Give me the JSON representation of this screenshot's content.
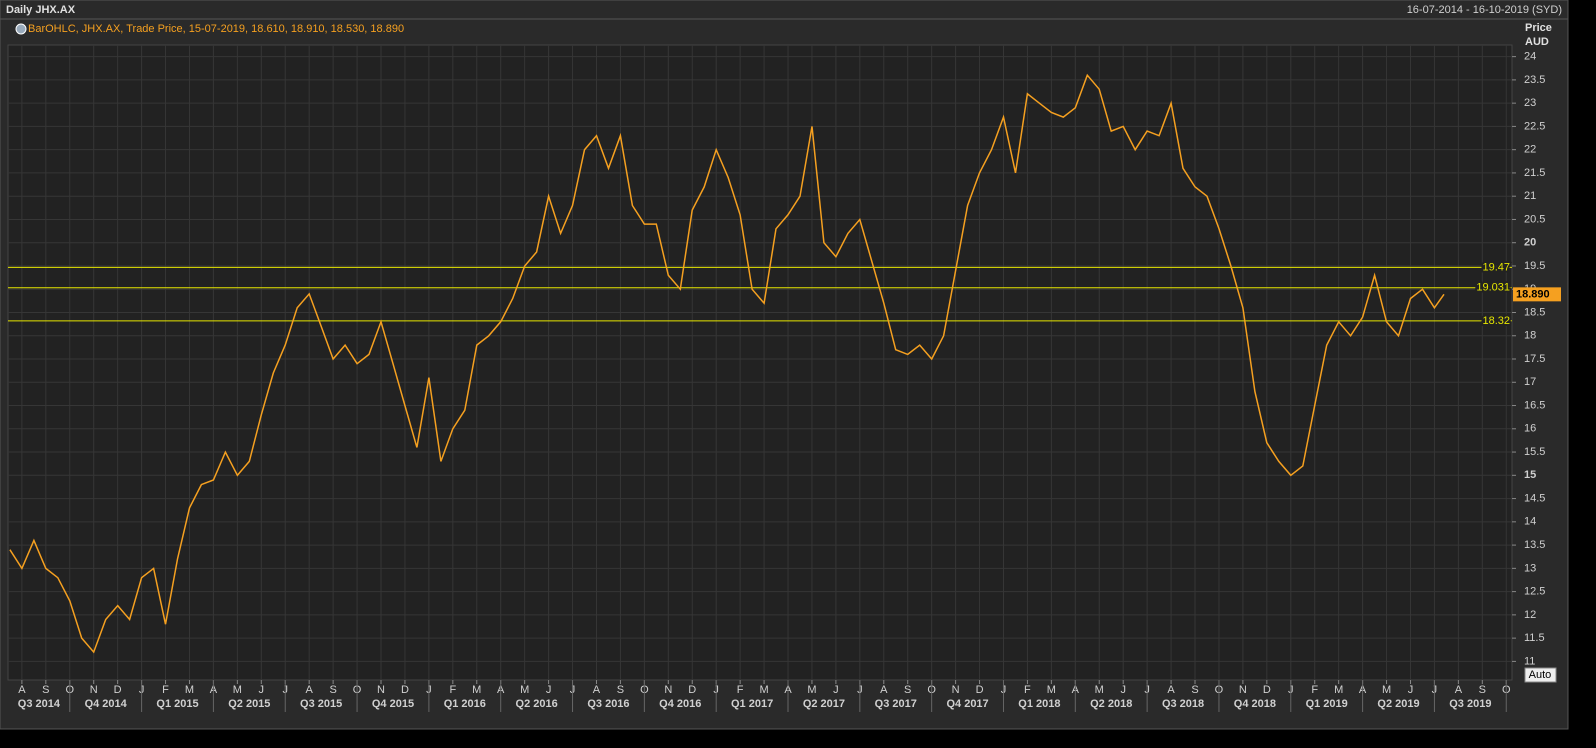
{
  "chart_data": {
    "type": "line",
    "title": "Daily JHX.AX",
    "date_range": "16-07-2014 - 16-10-2019 (SYD)",
    "legend_text": "BarOHLC, JHX.AX, Trade Price, 15-07-2019, 18.610, 18.910, 18.530, 18.890",
    "y_axis_title": "Price",
    "y_axis_unit": "AUD",
    "scale_button": "Auto",
    "x": [
      -0.5,
      0,
      0.5,
      1,
      1.5,
      2,
      2.5,
      3,
      3.5,
      4,
      4.5,
      5,
      5.5,
      6,
      6.5,
      7,
      7.5,
      8,
      8.5,
      9,
      9.5,
      10,
      10.5,
      11,
      11.5,
      12,
      12.5,
      13,
      13.5,
      14,
      14.5,
      15,
      15.5,
      16,
      16.5,
      17,
      17.5,
      18,
      18.5,
      19,
      19.5,
      20,
      20.5,
      21,
      21.5,
      22,
      22.5,
      23,
      23.5,
      24,
      24.5,
      25,
      25.5,
      26,
      26.5,
      27,
      27.5,
      28,
      28.5,
      29,
      29.5,
      30,
      30.5,
      31,
      31.5,
      32,
      32.5,
      33,
      33.5,
      34,
      34.5,
      35,
      35.5,
      36,
      36.5,
      37,
      37.5,
      38,
      38.5,
      39,
      39.5,
      40,
      40.5,
      41,
      41.5,
      42,
      42.5,
      43,
      43.5,
      44,
      44.5,
      45,
      45.5,
      46,
      46.5,
      47,
      47.5,
      48,
      48.5,
      49,
      49.5,
      50,
      50.5,
      51,
      51.5,
      52,
      52.5,
      53,
      53.5,
      54,
      54.5,
      55,
      55.5,
      56,
      56.5,
      57,
      57.5,
      58,
      58.5,
      59,
      59.4
    ],
    "series": [
      {
        "name": "JHX.AX",
        "color": "#f5a020",
        "values": [
          13.4,
          13.0,
          13.6,
          13.0,
          12.8,
          12.3,
          11.5,
          11.2,
          11.9,
          12.2,
          11.9,
          12.8,
          13.0,
          11.8,
          13.2,
          14.3,
          14.8,
          14.9,
          15.5,
          15.0,
          15.3,
          16.3,
          17.2,
          17.8,
          18.6,
          18.9,
          18.2,
          17.5,
          17.8,
          17.4,
          17.6,
          18.3,
          17.4,
          16.5,
          15.6,
          17.1,
          15.3,
          16.0,
          16.4,
          17.8,
          18.0,
          18.3,
          18.8,
          19.5,
          19.8,
          21.0,
          20.2,
          20.8,
          22.0,
          22.3,
          21.6,
          22.3,
          20.8,
          20.4,
          20.4,
          19.3,
          19.0,
          20.7,
          21.2,
          22.0,
          21.4,
          20.6,
          19.0,
          18.7,
          20.3,
          20.6,
          21.0,
          22.5,
          20.0,
          19.7,
          20.2,
          20.5,
          19.6,
          18.7,
          17.7,
          17.6,
          17.8,
          17.5,
          18.0,
          19.4,
          20.8,
          21.5,
          22.0,
          22.7,
          21.5,
          23.2,
          23.0,
          22.8,
          22.7,
          22.9,
          23.6,
          23.3,
          22.4,
          22.5,
          22.0,
          22.4,
          22.3,
          23.0,
          21.6,
          21.2,
          21.0,
          20.3,
          19.5,
          18.6,
          16.8,
          15.7,
          15.3,
          15.0,
          15.2,
          16.5,
          17.8,
          18.3,
          18.0,
          18.4,
          19.3,
          18.3,
          18.0,
          18.8,
          19.0,
          18.6,
          18.89
        ]
      }
    ],
    "levels": [
      19.47,
      19.031,
      18.32
    ],
    "level_color": "#e6e600",
    "last_price": {
      "value": 18.89,
      "label": "18.890"
    },
    "xlim": [
      -0.58,
      62.24
    ],
    "xticks": [
      {
        "value": 0,
        "label": "A"
      },
      {
        "value": 1,
        "label": "S"
      },
      {
        "value": 2,
        "label": "O"
      },
      {
        "value": 3,
        "label": "N"
      },
      {
        "value": 4,
        "label": "D"
      },
      {
        "value": 5,
        "label": "J"
      },
      {
        "value": 6,
        "label": "F"
      },
      {
        "value": 7,
        "label": "M"
      },
      {
        "value": 8,
        "label": "A"
      },
      {
        "value": 9,
        "label": "M"
      },
      {
        "value": 10,
        "label": "J"
      },
      {
        "value": 11,
        "label": "J"
      },
      {
        "value": 12,
        "label": "A"
      },
      {
        "value": 13,
        "label": "S"
      },
      {
        "value": 14,
        "label": "O"
      },
      {
        "value": 15,
        "label": "N"
      },
      {
        "value": 16,
        "label": "D"
      },
      {
        "value": 17,
        "label": "J"
      },
      {
        "value": 18,
        "label": "F"
      },
      {
        "value": 19,
        "label": "M"
      },
      {
        "value": 20,
        "label": "A"
      },
      {
        "value": 21,
        "label": "M"
      },
      {
        "value": 22,
        "label": "J"
      },
      {
        "value": 23,
        "label": "J"
      },
      {
        "value": 24,
        "label": "A"
      },
      {
        "value": 25,
        "label": "S"
      },
      {
        "value": 26,
        "label": "O"
      },
      {
        "value": 27,
        "label": "N"
      },
      {
        "value": 28,
        "label": "D"
      },
      {
        "value": 29,
        "label": "J"
      },
      {
        "value": 30,
        "label": "F"
      },
      {
        "value": 31,
        "label": "M"
      },
      {
        "value": 32,
        "label": "A"
      },
      {
        "value": 33,
        "label": "M"
      },
      {
        "value": 34,
        "label": "J"
      },
      {
        "value": 35,
        "label": "J"
      },
      {
        "value": 36,
        "label": "A"
      },
      {
        "value": 37,
        "label": "S"
      },
      {
        "value": 38,
        "label": "O"
      },
      {
        "value": 39,
        "label": "N"
      },
      {
        "value": 40,
        "label": "D"
      },
      {
        "value": 41,
        "label": "J"
      },
      {
        "value": 42,
        "label": "F"
      },
      {
        "value": 43,
        "label": "M"
      },
      {
        "value": 44,
        "label": "A"
      },
      {
        "value": 45,
        "label": "M"
      },
      {
        "value": 46,
        "label": "J"
      },
      {
        "value": 47,
        "label": "J"
      },
      {
        "value": 48,
        "label": "A"
      },
      {
        "value": 49,
        "label": "S"
      },
      {
        "value": 50,
        "label": "O"
      },
      {
        "value": 51,
        "label": "N"
      },
      {
        "value": 52,
        "label": "D"
      },
      {
        "value": 53,
        "label": "J"
      },
      {
        "value": 54,
        "label": "F"
      },
      {
        "value": 55,
        "label": "M"
      },
      {
        "value": 56,
        "label": "A"
      },
      {
        "value": 57,
        "label": "M"
      },
      {
        "value": 58,
        "label": "J"
      },
      {
        "value": 59,
        "label": "J"
      },
      {
        "value": 60,
        "label": "A"
      },
      {
        "value": 61,
        "label": "S"
      },
      {
        "value": 62,
        "label": "O"
      }
    ],
    "quarter_ticks": [
      {
        "value": -1,
        "label": "Q3 2014"
      },
      {
        "value": 2,
        "label": "Q4 2014"
      },
      {
        "value": 5,
        "label": "Q1 2015"
      },
      {
        "value": 8,
        "label": "Q2 2015"
      },
      {
        "value": 11,
        "label": "Q3 2015"
      },
      {
        "value": 14,
        "label": "Q4 2015"
      },
      {
        "value": 17,
        "label": "Q1 2016"
      },
      {
        "value": 20,
        "label": "Q2 2016"
      },
      {
        "value": 23,
        "label": "Q3 2016"
      },
      {
        "value": 26,
        "label": "Q4 2016"
      },
      {
        "value": 29,
        "label": "Q1 2017"
      },
      {
        "value": 32,
        "label": "Q2 2017"
      },
      {
        "value": 35,
        "label": "Q3 2017"
      },
      {
        "value": 38,
        "label": "Q4 2017"
      },
      {
        "value": 41,
        "label": "Q1 2018"
      },
      {
        "value": 44,
        "label": "Q2 2018"
      },
      {
        "value": 47,
        "label": "Q3 2018"
      },
      {
        "value": 50,
        "label": "Q4 2018"
      },
      {
        "value": 53,
        "label": "Q1 2019"
      },
      {
        "value": 56,
        "label": "Q2 2019"
      },
      {
        "value": 59,
        "label": "Q3 2019"
      }
    ],
    "ylim": [
      10.6,
      24.25
    ],
    "yticks": [
      11,
      11.5,
      12,
      12.5,
      13,
      13.5,
      14,
      14.5,
      15,
      15.5,
      16,
      16.5,
      17,
      17.5,
      18,
      18.5,
      19,
      19.5,
      20,
      20.5,
      21,
      21.5,
      22,
      22.5,
      23,
      23.5,
      24
    ],
    "grid": true
  }
}
